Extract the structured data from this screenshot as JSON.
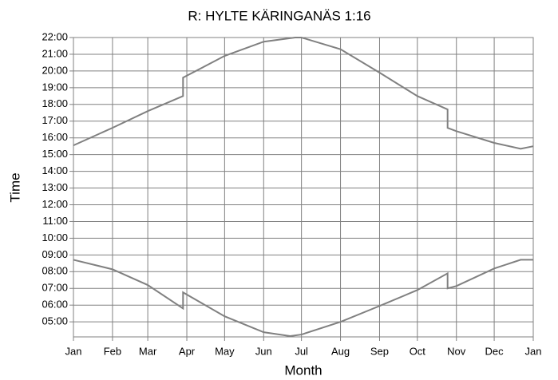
{
  "chart_data": {
    "type": "line",
    "title": "R: HYLTE KÄRINGANÄS 1:16",
    "xlabel": "Month",
    "ylabel": "Time",
    "grid": true,
    "xlim": [
      0,
      365
    ],
    "xticks": [
      {
        "value": 0,
        "label": "Jan"
      },
      {
        "value": 31,
        "label": "Feb"
      },
      {
        "value": 59,
        "label": "Mar"
      },
      {
        "value": 90,
        "label": "Apr"
      },
      {
        "value": 120,
        "label": "May"
      },
      {
        "value": 151,
        "label": "Jun"
      },
      {
        "value": 181,
        "label": "Jul"
      },
      {
        "value": 212,
        "label": "Aug"
      },
      {
        "value": 243,
        "label": "Sep"
      },
      {
        "value": 273,
        "label": "Oct"
      },
      {
        "value": 304,
        "label": "Nov"
      },
      {
        "value": 334,
        "label": "Dec"
      },
      {
        "value": 365,
        "label": "Jan"
      }
    ],
    "ylim": [
      4.1,
      22
    ],
    "yticks": [
      {
        "value": 5,
        "label": "05:00"
      },
      {
        "value": 6,
        "label": "06:00"
      },
      {
        "value": 7,
        "label": "07:00"
      },
      {
        "value": 8,
        "label": "08:00"
      },
      {
        "value": 9,
        "label": "09:00"
      },
      {
        "value": 10,
        "label": "10:00"
      },
      {
        "value": 11,
        "label": "11:00"
      },
      {
        "value": 12,
        "label": "12:00"
      },
      {
        "value": 13,
        "label": "13:00"
      },
      {
        "value": 14,
        "label": "14:00"
      },
      {
        "value": 15,
        "label": "15:00"
      },
      {
        "value": 16,
        "label": "16:00"
      },
      {
        "value": 17,
        "label": "17:00"
      },
      {
        "value": 18,
        "label": "18:00"
      },
      {
        "value": 19,
        "label": "19:00"
      },
      {
        "value": 20,
        "label": "20:00"
      },
      {
        "value": 21,
        "label": "21:00"
      },
      {
        "value": 22,
        "label": "22:00"
      }
    ],
    "series": [
      {
        "color": "#808080",
        "x": [
          0,
          31,
          59,
          87,
          87,
          120,
          151,
          176,
          181,
          212,
          243,
          273,
          297,
          297,
          304,
          334,
          355,
          365
        ],
        "values": [
          15.55,
          16.6,
          17.6,
          18.5,
          19.6,
          20.9,
          21.75,
          22.0,
          22.0,
          21.3,
          19.9,
          18.5,
          17.7,
          16.6,
          16.4,
          15.7,
          15.35,
          15.5
        ]
      },
      {
        "color": "#808080",
        "x": [
          0,
          31,
          59,
          87,
          87,
          120,
          151,
          172,
          181,
          212,
          243,
          273,
          297,
          297,
          304,
          334,
          355,
          365
        ],
        "values": [
          8.71,
          8.14,
          7.2,
          5.8,
          6.76,
          5.33,
          4.38,
          4.15,
          4.24,
          5.0,
          5.95,
          6.9,
          7.9,
          7.0,
          7.14,
          8.19,
          8.71,
          8.71
        ]
      }
    ]
  }
}
